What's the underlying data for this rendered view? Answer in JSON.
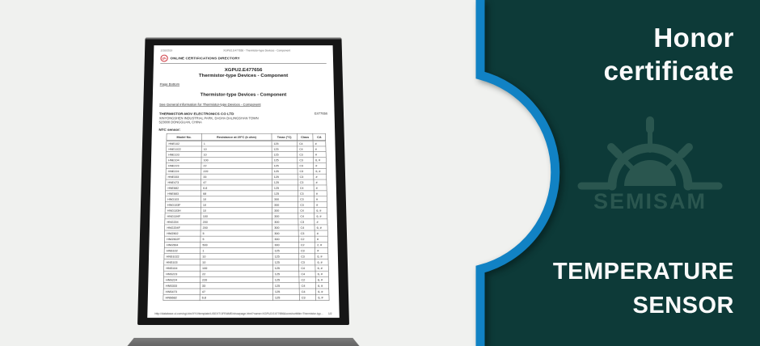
{
  "colors": {
    "background_left": "#f0f1ef",
    "panel_teal": "#0d3a38",
    "accent_blue": "#1182c4",
    "watermark_teal": "#2a564f",
    "ul_red": "#c8232c"
  },
  "right_panel": {
    "title_line1": "Honor",
    "title_line2": "certificate",
    "subtitle_line1": "TEMPERATURE",
    "subtitle_line2": "SENSOR",
    "brand": "SEMISAM"
  },
  "document": {
    "toolbar_date": "2/16/2019",
    "toolbar_title": "XGPU2.E477656 - Thermistor-type Devices - Component",
    "ul_logo_text": "UL",
    "directory_label": "ONLINE CERTIFICATIONS DIRECTORY",
    "cert_number": "XGPU2.E477656",
    "cert_title": "Thermistor-type Devices - Component",
    "page_bottom_link": "Page Bottom",
    "section_title": "Thermistor-type Devices - Component",
    "general_info_link": "See General Information for Thermistor-type Devices - Component",
    "company": {
      "name": "THERMISTOR-MOV ELECTRONICS CO LTD",
      "address1": "XINYONGSHEN INDUSTRIAL PARK, DASHA DALINGSHAN TOWN",
      "address2": "523000 DONGGUAN, CHINA",
      "file_number": "E477656"
    },
    "list_label": "NTC sensor:",
    "table": {
      "headers": [
        "Model No.",
        "Resistance at 25°C (k ohm)",
        "Tmax (°C)",
        "Class",
        "CA"
      ],
      "rows": [
        [
          "HNE102",
          "1",
          "125",
          "C4",
          "#"
        ],
        [
          "HNE1022",
          "10",
          "125",
          "C4",
          "#"
        ],
        [
          "HNE103",
          "10",
          "125",
          "C3",
          "#"
        ],
        [
          "HNE104",
          "100",
          "125",
          "C3",
          "6, #"
        ],
        [
          "HNE223",
          "22",
          "125",
          "C3",
          "#"
        ],
        [
          "HNE224",
          "220",
          "125",
          "C3",
          "6, #"
        ],
        [
          "HNE333",
          "33",
          "125",
          "C3",
          "#"
        ],
        [
          "HNE473",
          "47",
          "125",
          "C3",
          "#"
        ],
        [
          "HNE682",
          "6.8",
          "125",
          "C4",
          "#"
        ],
        [
          "HNE683",
          "68",
          "125",
          "C3",
          "#"
        ],
        [
          "HNG103",
          "10",
          "300",
          "C3",
          "#"
        ],
        [
          "HNG103F",
          "10",
          "300",
          "C3",
          "#"
        ],
        [
          "HNG103H",
          "10",
          "300",
          "C4",
          "6, #"
        ],
        [
          "HNG104F",
          "100",
          "300",
          "C4",
          "6, #"
        ],
        [
          "HNG204",
          "200",
          "300",
          "C3",
          "#"
        ],
        [
          "HNG204F",
          "200",
          "300",
          "C4",
          "6, #"
        ],
        [
          "HNG502",
          "5",
          "300",
          "C3",
          "#"
        ],
        [
          "HNG502F",
          "5",
          "300",
          "C2",
          "#"
        ],
        [
          "HNG504",
          "500",
          "300",
          "C2",
          "2, #"
        ],
        [
          "HNS102",
          "1",
          "125",
          "C3",
          "#"
        ],
        [
          "HNS1022",
          "10",
          "125",
          "C3",
          "6, #"
        ],
        [
          "HNS103",
          "10",
          "125",
          "C3",
          "6, #"
        ],
        [
          "HNS104",
          "100",
          "125",
          "C4",
          "6, #"
        ],
        [
          "HNS223",
          "22",
          "125",
          "C4",
          "6, #"
        ],
        [
          "HNS224",
          "220",
          "125",
          "C2",
          "6, #"
        ],
        [
          "HNS333",
          "33",
          "125",
          "C4",
          "6, #"
        ],
        [
          "HNS473",
          "47",
          "125",
          "C4",
          "6, #"
        ],
        [
          "HNS682",
          "6.8",
          "125",
          "C3",
          "6, #"
        ]
      ]
    },
    "footer_url": "http://database.ul.com/cgi-bin/XYV/template/LISEXT/1FRAME/showpage.html?name=XGPU2.E477656&ccnshorttitle=Thermistor-type+Devices+-+Compo...",
    "footer_page": "1/2"
  }
}
